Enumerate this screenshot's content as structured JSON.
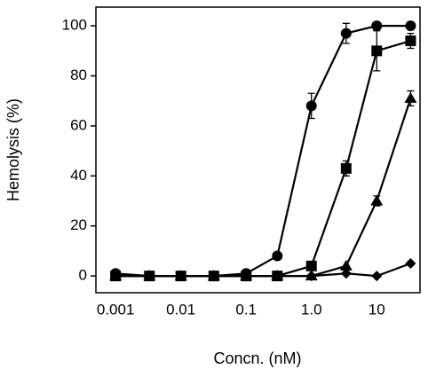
{
  "chart_data": {
    "type": "line",
    "xlabel": "Concn. (nM)",
    "ylabel": "Hemolysis (%)",
    "x": [
      0.001,
      0.0033,
      0.01,
      0.032,
      0.1,
      0.3,
      1,
      3.4,
      10,
      33
    ],
    "xscale": "log",
    "xlim": [
      0.0005,
      46
    ],
    "xticks": [
      0.001,
      0.01,
      0.1,
      {
        "value": 1,
        "label": "1.0"
      },
      10
    ],
    "ylim": [
      -6.7,
      107.5
    ],
    "yticks": [
      0,
      20,
      40,
      60,
      80,
      100
    ],
    "grid": false,
    "series": [
      {
        "color": "#000000",
        "marker": "circle",
        "values": [
          1,
          0,
          0,
          0,
          1,
          8,
          68,
          97,
          100,
          100
        ],
        "errors": [
          0,
          0,
          0,
          0,
          0,
          0,
          5,
          4,
          0,
          0
        ]
      },
      {
        "color": "#000000",
        "marker": "square",
        "values": [
          0,
          0,
          0,
          0,
          0,
          0,
          4,
          43,
          90,
          94
        ],
        "errors": [
          0,
          0,
          0,
          0,
          0,
          0,
          0,
          3,
          8,
          3
        ]
      },
      {
        "color": "#000000",
        "marker": "triangle",
        "values": [
          0,
          0,
          0,
          0,
          0,
          0,
          0,
          4,
          30,
          71
        ],
        "errors": [
          0,
          0,
          0,
          0,
          0,
          0,
          0,
          0,
          2,
          3
        ]
      },
      {
        "color": "#000000",
        "marker": "diamond",
        "values": [
          0,
          0,
          0,
          0,
          0,
          0,
          0,
          1,
          0,
          5
        ],
        "errors": [
          0,
          0,
          0,
          0,
          0,
          0,
          0,
          0,
          0,
          0
        ]
      }
    ]
  }
}
